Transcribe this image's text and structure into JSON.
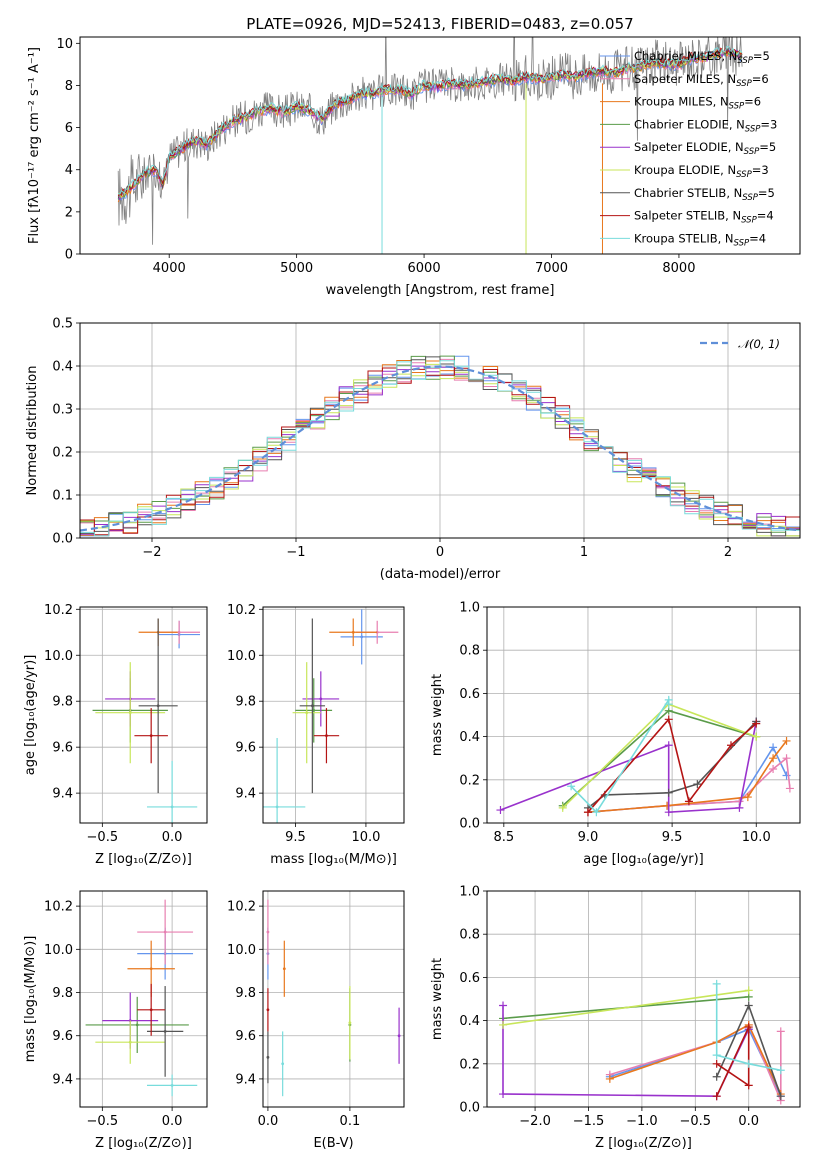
{
  "colors": {
    "chabrier_miles": "#6495ed",
    "salpeter_miles": "#e87fb0",
    "kroupa_miles": "#e8781e",
    "chabrier_elodie": "#5a9b4a",
    "salpeter_elodie": "#9932cc",
    "kroupa_elodie": "#c8e65a",
    "chabrier_stelib": "#555555",
    "salpeter_stelib": "#b41414",
    "kroupa_stelib": "#78dcdc",
    "data": "#808080",
    "normal": "#5f8fd8"
  },
  "chart_data": [
    {
      "id": "spectrum",
      "type": "line",
      "title": "PLATE=0926, MJD=52413, FIBERID=0483, z=0.057",
      "xlabel": "wavelength [Angstrom, rest frame]",
      "ylabel": "Flux [fλ10⁻¹⁷ erg cm⁻² s⁻¹ A⁻¹]",
      "xlim": [
        3300,
        8950
      ],
      "ylim": [
        0,
        10.3
      ],
      "xticks": [
        4000,
        5000,
        6000,
        7000,
        8000
      ],
      "yticks": [
        0,
        2,
        4,
        6,
        8,
        10
      ],
      "grid": false,
      "legend_position": "right",
      "legend": [
        {
          "label": "Chabrier MILES, N",
          "sub": "SSP",
          "suffix": "=5",
          "color_key": "chabrier_miles"
        },
        {
          "label": "Salpeter MILES, N",
          "sub": "SSP",
          "suffix": "=6",
          "color_key": "salpeter_miles"
        },
        {
          "label": "Kroupa MILES, N",
          "sub": "SSP",
          "suffix": "=6",
          "color_key": "kroupa_miles"
        },
        {
          "label": "Chabrier ELODIE, N",
          "sub": "SSP",
          "suffix": "=3",
          "color_key": "chabrier_elodie"
        },
        {
          "label": "Salpeter ELODIE, N",
          "sub": "SSP",
          "suffix": "=5",
          "color_key": "salpeter_elodie"
        },
        {
          "label": "Kroupa ELODIE, N",
          "sub": "SSP",
          "suffix": "=3",
          "color_key": "kroupa_elodie"
        },
        {
          "label": "Chabrier STELIB, N",
          "sub": "SSP",
          "suffix": "=5",
          "color_key": "chabrier_stelib"
        },
        {
          "label": "Salpeter STELIB, N",
          "sub": "SSP",
          "suffix": "=4",
          "color_key": "salpeter_stelib"
        },
        {
          "label": "Kroupa STELIB, N",
          "sub": "SSP",
          "suffix": "=4",
          "color_key": "kroupa_stelib"
        }
      ],
      "continuum": [
        [
          3600,
          2.7
        ],
        [
          3700,
          3.1
        ],
        [
          3800,
          3.8
        ],
        [
          3900,
          4.0
        ],
        [
          3950,
          3.2
        ],
        [
          4000,
          4.6
        ],
        [
          4100,
          5.0
        ],
        [
          4200,
          5.4
        ],
        [
          4300,
          5.2
        ],
        [
          4400,
          5.9
        ],
        [
          4500,
          6.3
        ],
        [
          4600,
          6.5
        ],
        [
          4700,
          6.8
        ],
        [
          4800,
          6.9
        ],
        [
          4900,
          6.7
        ],
        [
          5000,
          7.0
        ],
        [
          5100,
          6.8
        ],
        [
          5200,
          6.4
        ],
        [
          5300,
          7.1
        ],
        [
          5400,
          7.3
        ],
        [
          5500,
          7.6
        ],
        [
          5600,
          7.6
        ],
        [
          5700,
          7.8
        ],
        [
          5800,
          7.8
        ],
        [
          5900,
          7.6
        ],
        [
          6000,
          8.0
        ],
        [
          6100,
          7.9
        ],
        [
          6200,
          8.1
        ],
        [
          6300,
          8.0
        ],
        [
          6400,
          8.1
        ],
        [
          6500,
          8.2
        ],
        [
          6600,
          8.3
        ],
        [
          6700,
          8.2
        ],
        [
          6800,
          8.4
        ],
        [
          6900,
          8.3
        ],
        [
          7000,
          8.4
        ],
        [
          7100,
          8.5
        ],
        [
          7200,
          8.4
        ],
        [
          7300,
          8.6
        ],
        [
          7400,
          8.7
        ],
        [
          7500,
          8.6
        ],
        [
          7600,
          8.8
        ],
        [
          7700,
          8.9
        ],
        [
          7800,
          9.1
        ],
        [
          7900,
          9.0
        ],
        [
          8000,
          9.0
        ],
        [
          8100,
          9.3
        ],
        [
          8200,
          9.3
        ],
        [
          8300,
          9.5
        ],
        [
          8400,
          9.6
        ],
        [
          8500,
          9.4
        ]
      ]
    },
    {
      "id": "residuals",
      "type": "line",
      "xlabel": "(data-model)/error",
      "ylabel": "Normed distribution",
      "xlim": [
        -2.5,
        2.5
      ],
      "ylim": [
        0,
        0.5
      ],
      "xticks": [
        -2,
        -1,
        0,
        1,
        2
      ],
      "xticklabels": [
        "−2",
        "−1",
        "0",
        "1",
        "2"
      ],
      "yticks": [
        0.0,
        0.1,
        0.2,
        0.3,
        0.4,
        0.5
      ],
      "yticklabels": [
        "0.0",
        "0.1",
        "0.2",
        "0.3",
        "0.4",
        "0.5"
      ],
      "grid": true,
      "legend_label": "𝒩(0, 1)",
      "legend_position": "top-right",
      "normal": {
        "mean": 0,
        "sigma": 1
      }
    },
    {
      "id": "age-vs-Z",
      "type": "scatter",
      "xlabel": "Z [log₁₀(Z/Z⊙)]",
      "ylabel": "age  [log₁₀(age/yr)]",
      "xlim": [
        -0.66,
        0.25
      ],
      "ylim": [
        9.27,
        10.21
      ],
      "xticks": [
        -0.5,
        0.0
      ],
      "xticklabels": [
        "−0.5",
        "0.0"
      ],
      "yticks": [
        9.4,
        9.6,
        9.8,
        10.0,
        10.2
      ],
      "yticklabels": [
        "9.4",
        "9.6",
        "9.8",
        "10.0",
        "10.2"
      ],
      "grid": true,
      "points": [
        {
          "x": 0.05,
          "y": 10.09,
          "xe": 0.15,
          "ye": 0.06,
          "c": "chabrier_miles"
        },
        {
          "x": 0.05,
          "y": 10.1,
          "xe": 0.15,
          "ye": 0.05,
          "c": "salpeter_miles"
        },
        {
          "x": -0.1,
          "y": 10.1,
          "xe": 0.14,
          "ye": 0.06,
          "c": "kroupa_miles"
        },
        {
          "x": -0.3,
          "y": 9.76,
          "xe": 0.27,
          "ye": 0.14,
          "c": "chabrier_elodie"
        },
        {
          "x": -0.3,
          "y": 9.81,
          "xe": 0.18,
          "ye": 0.12,
          "c": "salpeter_elodie"
        },
        {
          "x": -0.3,
          "y": 9.75,
          "xe": 0.25,
          "ye": 0.22,
          "c": "kroupa_elodie"
        },
        {
          "x": -0.1,
          "y": 9.78,
          "xe": 0.14,
          "ye": 0.38,
          "c": "chabrier_stelib"
        },
        {
          "x": -0.15,
          "y": 9.65,
          "xe": 0.12,
          "ye": 0.12,
          "c": "salpeter_stelib"
        },
        {
          "x": 0.0,
          "y": 9.34,
          "xe": 0.18,
          "ye": 0.2,
          "c": "kroupa_stelib"
        }
      ]
    },
    {
      "id": "age-vs-mass",
      "type": "scatter",
      "xlabel": "mass [log₁₀(M/M⊙)]",
      "ylabel": "",
      "xlim": [
        9.27,
        10.27
      ],
      "ylim": [
        9.27,
        10.21
      ],
      "xticks": [
        9.5,
        10.0
      ],
      "xticklabels": [
        "9.5",
        "10.0"
      ],
      "yticks": [
        9.4,
        9.6,
        9.8,
        10.0,
        10.2
      ],
      "yticklabels": [
        "9.4",
        "9.6",
        "9.8",
        "10.0",
        "10.2"
      ],
      "grid": true,
      "points": [
        {
          "x": 9.97,
          "y": 10.08,
          "xe": 0.15,
          "ye": 0.12,
          "c": "chabrier_miles"
        },
        {
          "x": 10.08,
          "y": 10.1,
          "xe": 0.15,
          "ye": 0.05,
          "c": "salpeter_miles"
        },
        {
          "x": 9.91,
          "y": 10.1,
          "xe": 0.17,
          "ye": 0.06,
          "c": "kroupa_miles"
        },
        {
          "x": 9.63,
          "y": 9.76,
          "xe": 0.13,
          "ye": 0.14,
          "c": "chabrier_elodie"
        },
        {
          "x": 9.68,
          "y": 9.81,
          "xe": 0.13,
          "ye": 0.12,
          "c": "salpeter_elodie"
        },
        {
          "x": 9.58,
          "y": 9.75,
          "xe": 0.1,
          "ye": 0.22,
          "c": "kroupa_elodie"
        },
        {
          "x": 9.62,
          "y": 9.78,
          "xe": 0.09,
          "ye": 0.38,
          "c": "chabrier_stelib"
        },
        {
          "x": 9.72,
          "y": 9.65,
          "xe": 0.09,
          "ye": 0.12,
          "c": "salpeter_stelib"
        },
        {
          "x": 9.37,
          "y": 9.34,
          "xe": 0.2,
          "ye": 0.3,
          "c": "kroupa_stelib"
        }
      ]
    },
    {
      "id": "mass-weight-vs-age",
      "type": "line",
      "xlabel": "age  [log₁₀(age/yr)]",
      "ylabel": "mass weight",
      "xlim": [
        8.4,
        10.26
      ],
      "ylim": [
        0,
        1.0
      ],
      "xticks": [
        8.5,
        9.0,
        9.5,
        10.0
      ],
      "xticklabels": [
        "8.5",
        "9.0",
        "9.5",
        "10.0"
      ],
      "yticks": [
        0.0,
        0.2,
        0.4,
        0.6,
        0.8,
        1.0
      ],
      "yticklabels": [
        "0.0",
        "0.2",
        "0.4",
        "0.6",
        "0.8",
        "1.0"
      ],
      "grid": true,
      "series": [
        {
          "c": "chabrier_miles",
          "x": [
            9.0,
            9.47,
            9.9,
            10.1,
            10.18
          ],
          "y": [
            0.05,
            0.08,
            0.1,
            0.35,
            0.22
          ]
        },
        {
          "c": "salpeter_miles",
          "x": [
            9.0,
            9.47,
            9.9,
            10.1,
            10.18,
            10.2
          ],
          "y": [
            0.05,
            0.08,
            0.1,
            0.25,
            0.3,
            0.16
          ]
        },
        {
          "c": "kroupa_miles",
          "x": [
            9.0,
            9.47,
            9.95,
            10.1,
            10.18
          ],
          "y": [
            0.05,
            0.08,
            0.12,
            0.3,
            0.38
          ]
        },
        {
          "c": "chabrier_elodie",
          "x": [
            8.85,
            9.48,
            10.0
          ],
          "y": [
            0.08,
            0.52,
            0.4
          ]
        },
        {
          "c": "salpeter_elodie",
          "x": [
            8.48,
            9.48,
            9.48,
            9.9,
            10.0
          ],
          "y": [
            0.06,
            0.36,
            0.05,
            0.07,
            0.47
          ]
        },
        {
          "c": "kroupa_elodie",
          "x": [
            8.85,
            9.48,
            10.0
          ],
          "y": [
            0.07,
            0.55,
            0.4
          ]
        },
        {
          "c": "chabrier_stelib",
          "x": [
            9.0,
            9.1,
            9.48,
            9.65,
            10.0
          ],
          "y": [
            0.07,
            0.13,
            0.14,
            0.18,
            0.47
          ]
        },
        {
          "c": "salpeter_stelib",
          "x": [
            9.0,
            9.48,
            9.6,
            9.85,
            10.0
          ],
          "y": [
            0.05,
            0.48,
            0.1,
            0.36,
            0.46
          ]
        },
        {
          "c": "kroupa_stelib",
          "x": [
            8.9,
            9.05,
            9.48,
            9.48
          ],
          "y": [
            0.17,
            0.05,
            0.57,
            0.55
          ]
        }
      ]
    },
    {
      "id": "mass-vs-Z",
      "type": "scatter",
      "xlabel": "Z [log₁₀(Z/Z⊙)]",
      "ylabel": "mass [log₁₀(M/M⊙)]",
      "xlim": [
        -0.66,
        0.25
      ],
      "ylim": [
        9.27,
        10.27
      ],
      "xticks": [
        -0.5,
        0.0
      ],
      "xticklabels": [
        "−0.5",
        "0.0"
      ],
      "yticks": [
        9.4,
        9.6,
        9.8,
        10.0,
        10.2
      ],
      "yticklabels": [
        "9.4",
        "9.6",
        "9.8",
        "10.0",
        "10.2"
      ],
      "grid": true,
      "points": [
        {
          "x": -0.05,
          "y": 9.98,
          "xe": 0.2,
          "ye": 0.12,
          "c": "chabrier_miles"
        },
        {
          "x": -0.05,
          "y": 10.08,
          "xe": 0.2,
          "ye": 0.15,
          "c": "salpeter_miles"
        },
        {
          "x": -0.15,
          "y": 9.91,
          "xe": 0.17,
          "ye": 0.13,
          "c": "kroupa_miles"
        },
        {
          "x": -0.25,
          "y": 9.65,
          "xe": 0.37,
          "ye": 0.13,
          "c": "chabrier_elodie"
        },
        {
          "x": -0.3,
          "y": 9.67,
          "xe": 0.2,
          "ye": 0.13,
          "c": "salpeter_elodie"
        },
        {
          "x": -0.3,
          "y": 9.57,
          "xe": 0.25,
          "ye": 0.1,
          "c": "kroupa_elodie"
        },
        {
          "x": -0.05,
          "y": 9.62,
          "xe": 0.13,
          "ye": 0.21,
          "c": "chabrier_stelib"
        },
        {
          "x": -0.15,
          "y": 9.72,
          "xe": 0.1,
          "ye": 0.12,
          "c": "salpeter_stelib"
        },
        {
          "x": 0.0,
          "y": 9.37,
          "xe": 0.18,
          "ye": 0.05,
          "c": "kroupa_stelib"
        }
      ]
    },
    {
      "id": "mass-vs-EBV",
      "type": "scatter",
      "xlabel": "E(B-V)",
      "ylabel": "",
      "xlim": [
        -0.006,
        0.166
      ],
      "ylim": [
        9.27,
        10.27
      ],
      "xticks": [
        0.0,
        0.1
      ],
      "xticklabels": [
        "0.0",
        "0.1"
      ],
      "yticks": [
        9.4,
        9.6,
        9.8,
        10.0,
        10.2
      ],
      "yticklabels": [
        "9.4",
        "9.6",
        "9.8",
        "10.0",
        "10.2"
      ],
      "grid": true,
      "points": [
        {
          "x": 0.0,
          "y": 9.98,
          "xe": 0,
          "ye": 0.12,
          "c": "chabrier_miles"
        },
        {
          "x": 0.0,
          "y": 10.08,
          "xe": 0,
          "ye": 0.15,
          "c": "salpeter_miles"
        },
        {
          "x": 0.02,
          "y": 9.91,
          "xe": 0,
          "ye": 0.13,
          "c": "kroupa_miles"
        },
        {
          "x": 0.1,
          "y": 9.65,
          "xe": 0,
          "ye": 0.17,
          "c": "chabrier_elodie"
        },
        {
          "x": 0.16,
          "y": 9.6,
          "xe": 0,
          "ye": 0.13,
          "c": "salpeter_elodie"
        },
        {
          "x": 0.1,
          "y": 9.66,
          "xe": 0,
          "ye": 0.17,
          "c": "kroupa_elodie"
        },
        {
          "x": 0.0,
          "y": 9.5,
          "xe": 0,
          "ye": 0.12,
          "c": "chabrier_stelib"
        },
        {
          "x": 0.0,
          "y": 9.72,
          "xe": 0,
          "ye": 0.1,
          "c": "salpeter_stelib"
        },
        {
          "x": 0.018,
          "y": 9.47,
          "xe": 0,
          "ye": 0.15,
          "c": "kroupa_stelib"
        }
      ]
    },
    {
      "id": "mass-weight-vs-Z",
      "type": "line",
      "xlabel": "Z [log₁₀(Z/Z⊙)]",
      "ylabel": "mass weight",
      "xlim": [
        -2.45,
        0.48
      ],
      "ylim": [
        0,
        1.0
      ],
      "xticks": [
        -2.0,
        -1.5,
        -1.0,
        -0.5,
        0.0
      ],
      "xticklabels": [
        "−2.0",
        "−1.5",
        "−1.0",
        "−0.5",
        "0.0"
      ],
      "yticks": [
        0.0,
        0.2,
        0.4,
        0.6,
        0.8,
        1.0
      ],
      "yticklabels": [
        "0.0",
        "0.2",
        "0.4",
        "0.6",
        "0.8",
        "1.0"
      ],
      "grid": true,
      "series": [
        {
          "c": "chabrier_miles",
          "x": [
            -1.3,
            -0.3,
            0.0,
            0.3
          ],
          "y": [
            0.14,
            0.3,
            0.36,
            0.05
          ]
        },
        {
          "c": "salpeter_miles",
          "x": [
            -1.3,
            -0.3,
            0.0,
            0.3,
            0.3
          ],
          "y": [
            0.15,
            0.3,
            0.38,
            0.03,
            0.35
          ]
        },
        {
          "c": "kroupa_miles",
          "x": [
            -1.3,
            -0.3,
            0.0,
            0.3
          ],
          "y": [
            0.13,
            0.3,
            0.38,
            0.06
          ]
        },
        {
          "c": "chabrier_elodie",
          "x": [
            -2.3,
            0.0
          ],
          "y": [
            0.41,
            0.51
          ]
        },
        {
          "c": "salpeter_elodie",
          "x": [
            -2.3,
            -2.3,
            -0.3,
            0.0
          ],
          "y": [
            0.47,
            0.06,
            0.05,
            0.36
          ]
        },
        {
          "c": "kroupa_elodie",
          "x": [
            -2.3,
            0.0
          ],
          "y": [
            0.38,
            0.54
          ]
        },
        {
          "c": "chabrier_stelib",
          "x": [
            -0.3,
            0.0,
            0.3
          ],
          "y": [
            0.14,
            0.47,
            0.05
          ]
        },
        {
          "c": "salpeter_stelib",
          "x": [
            -0.3,
            0.0,
            0.0,
            -0.3
          ],
          "y": [
            0.05,
            0.37,
            0.1,
            0.2
          ]
        },
        {
          "c": "kroupa_stelib",
          "x": [
            -0.3,
            -0.3,
            0.0,
            0.3
          ],
          "y": [
            0.57,
            0.24,
            0.2,
            0.17
          ]
        }
      ]
    }
  ]
}
